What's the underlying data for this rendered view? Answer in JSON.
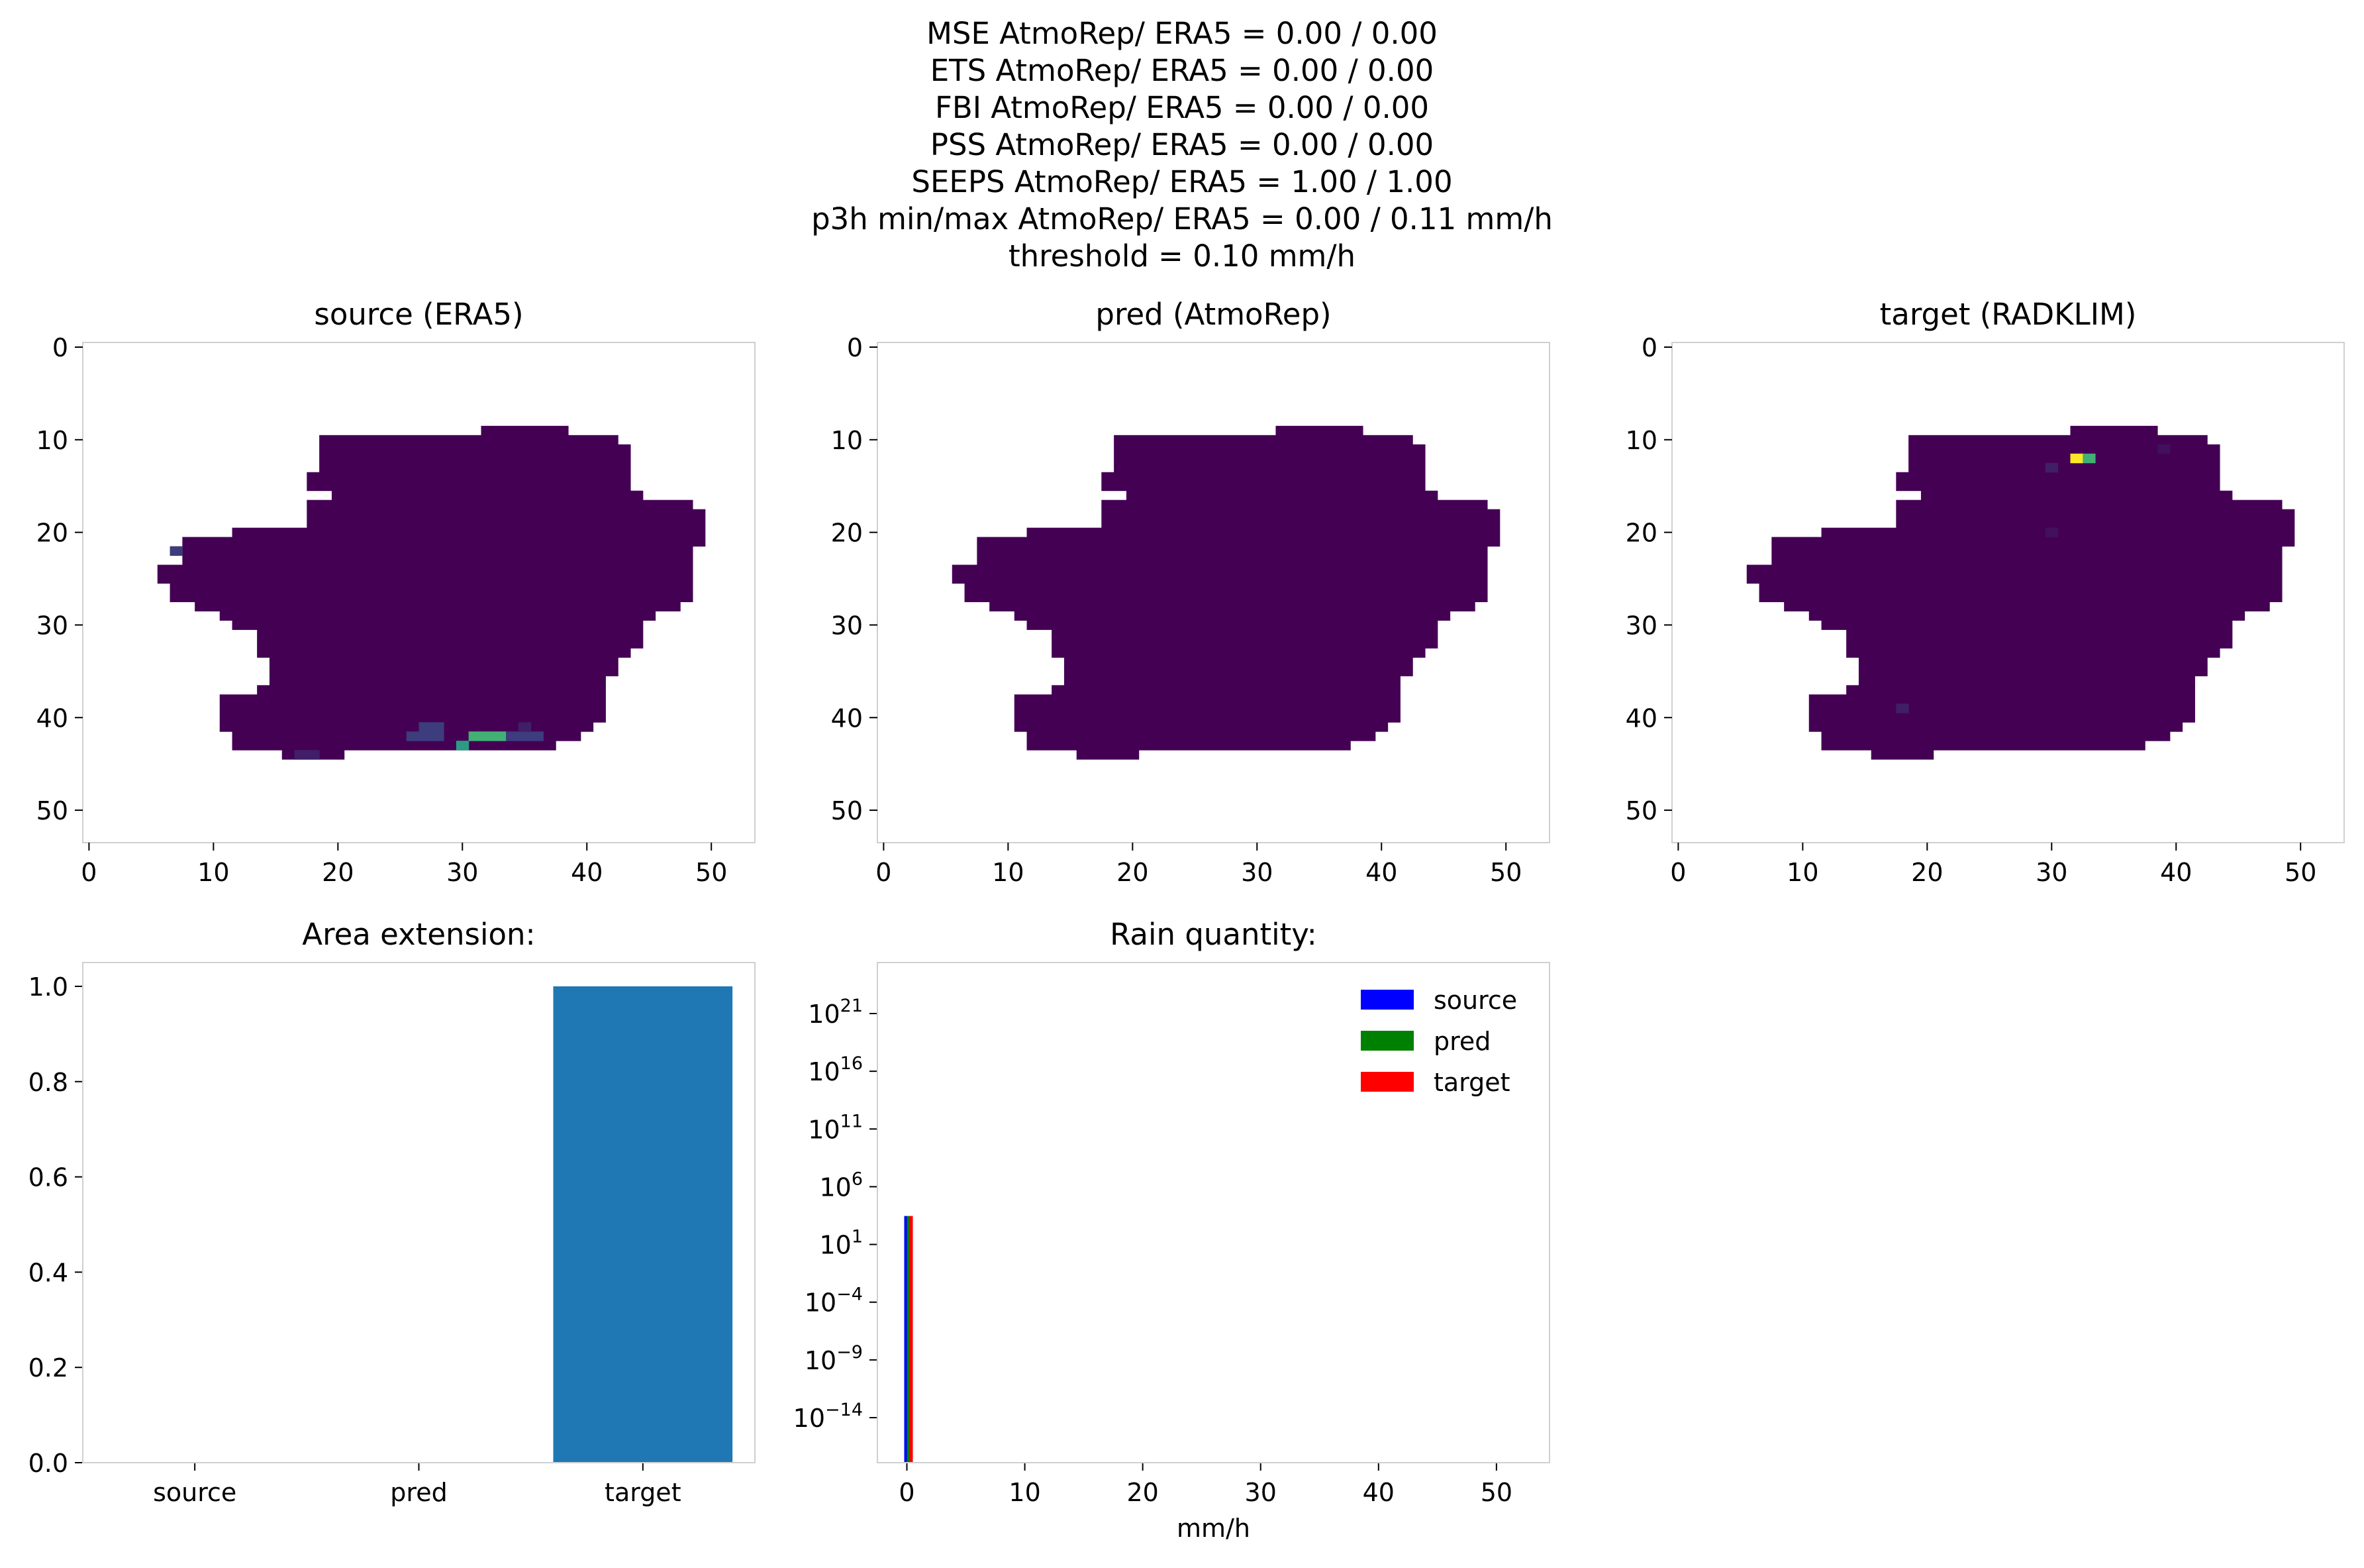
{
  "suptitle": [
    "MSE AtmoRep/ ERA5 = 0.00 / 0.00",
    "ETS AtmoRep/ ERA5 = 0.00 / 0.00",
    "FBI AtmoRep/ ERA5 = 0.00 / 0.00",
    "PSS AtmoRep/ ERA5 = 0.00 / 0.00",
    "SEEPS AtmoRep/ ERA5 = 1.00 / 1.00",
    "p3h min/max AtmoRep/ ERA5 = 0.00 / 0.11 mm/h",
    "threshold = 0.10 mm/h"
  ],
  "colors": {
    "background": "#440154",
    "mask_rows_hex": [
      "0000000000000000000000000000000000000000000000000000000",
      "0000000000000000000000000000000000000000000000000000000",
      "0000000000000000000000000000000000000000000000000000000",
      "0000000000000000000000000000000000000000000000000000000",
      "0000000000000000000000000000000000000000000000000000000",
      "0000000000000000000000000000000000000000000000000000000",
      "0000000000000000000000000000000000000000000000000000000",
      "0000000000000000000000000000000000000000000000000000000",
      "0000000000000000000000000000000000000000000000000000000",
      "0000000000000000000000000000000000000000000000000000000",
      "0000000000000000000000000000000000000000000000000000000",
      "0000000000000000000000000000000000000000000000000000000",
      "0000000000000000000000000000000000000000000000000000000",
      "0000000000000000000000000000000000000000000000000000000",
      "0000000000000000000000000000000000000000000000000000000",
      "0000000000000000000000000000000000000000000000000000000",
      "0000000000000000000000000000000000000000000000000000000",
      "0000000000000000000000000000000000000000000000000000000",
      "0000000000000000000000000000000000000000000000000000000",
      "0000000000000000000000000000000000000000000000000000000",
      "0000000000000000000000000000000000000000000000000000000",
      "0000000000000000000000000000000000000000000000000000000",
      "0000000000000000000000000000000000000000000000000000000",
      "0000000000000000000000000000000000000000000000000000000",
      "0000000000000000000000000000000000000000000000000000000",
      "0000000000000000000000000000000000000000000000000000000",
      "0000000000000000000000000000000000000000000000000000000",
      "0000000000000000000000000000000000000000000000000000000",
      "0000000000000000000000000000000000000000000000000000000",
      "0000000000000000000000000000000000000000000000000000000",
      "0000000000000000000000000000000000000000000000000000000",
      "0000000000000000000000000000000000000000000000000000000",
      "0000000000000000000000000000000000000000000000000000000",
      "0000000000000000000000000000000000000000000000000000000",
      "0000000000000000000000000000000000000000000000000000000",
      "0000000000000000000000000000000000000000000000000000000",
      "0000000000000000000000000000000000000000000000000000000",
      "0000000000000000000000000000000000000000000000000000000",
      "0000000000000000000000000000000000000000000000000000000",
      "0000000000000000000000000000000000000000000000000000000",
      "0000000000000000000000000000000000000000000000000000000",
      "0000000000000000000000000000000000000000000000000000000",
      "0000000000000000000000000000000000000000000000000000000",
      "0000000000000000000000000000000000000000000000000000000",
      "0000000000000000000000000000000000000000000000000000000",
      "0000000000000000000000000000000000000000000000000000000",
      "0000000000000000000000000000000000000000000000000000000",
      "0000000000000000000000000000000000000000000000000000000",
      "0000000000000000000000000000000000000000000000000000000",
      "0000000000000000000000000000000000000000000000000000000",
      "0000000000000000000000000000000000000000000000000000000",
      "0000000000000000000000000000000000000000000000000000000",
      "0000000000000000000000000000000000000000000000000000000",
      "0000000000000000000000000000000000000000000000000000000"
    ],
    "hist_source": "#0000ff",
    "hist_pred": "#008000",
    "hist_target": "#ff0000",
    "bar": "#1f77b4",
    "spine": "#d0d0d0"
  },
  "heatmap": {
    "ticks": [
      "0",
      "10",
      "20",
      "30",
      "40",
      "50"
    ],
    "panels": [
      {
        "title": "source (ERA5)"
      },
      {
        "title": "pred (AtmoRep)"
      },
      {
        "title": "target (RADKLIM)"
      }
    ]
  },
  "chart_data": [
    {
      "type": "heatmap",
      "title": "source (ERA5)",
      "xlim": [
        -0.5,
        53.5
      ],
      "ylim": [
        53.5,
        -0.5
      ],
      "colormap": "viridis",
      "vmin": 0,
      "vmax": 0.11,
      "mask_rows": [
        [
          9,
          32,
          38
        ],
        [
          10,
          19,
          42
        ],
        [
          11,
          19,
          43
        ],
        [
          12,
          19,
          43
        ],
        [
          13,
          19,
          43
        ],
        [
          14,
          18,
          43
        ],
        [
          15,
          18,
          43
        ],
        [
          16,
          20,
          44
        ],
        [
          17,
          18,
          48
        ],
        [
          18,
          18,
          49
        ],
        [
          19,
          18,
          49
        ],
        [
          20,
          12,
          49
        ],
        [
          21,
          8,
          49
        ],
        [
          22,
          8,
          48
        ],
        [
          23,
          8,
          48
        ],
        [
          24,
          6,
          48
        ],
        [
          25,
          6,
          48
        ],
        [
          26,
          7,
          48
        ],
        [
          27,
          7,
          48
        ],
        [
          28,
          9,
          47
        ],
        [
          29,
          11,
          45
        ],
        [
          30,
          12,
          44
        ],
        [
          31,
          14,
          44
        ],
        [
          32,
          14,
          44
        ],
        [
          33,
          14,
          43
        ],
        [
          34,
          15,
          42
        ],
        [
          35,
          15,
          42
        ],
        [
          36,
          15,
          41
        ],
        [
          37,
          14,
          41
        ],
        [
          38,
          11,
          41
        ],
        [
          39,
          11,
          41
        ],
        [
          40,
          11,
          41
        ],
        [
          41,
          11,
          40
        ],
        [
          42,
          12,
          39
        ],
        [
          43,
          12,
          37
        ],
        [
          44,
          16,
          20
        ]
      ],
      "hot_cells": [
        [
          22,
          7,
          0.02
        ],
        [
          41,
          27,
          0.02
        ],
        [
          41,
          28,
          0.02
        ],
        [
          42,
          26,
          0.02
        ],
        [
          42,
          27,
          0.02
        ],
        [
          42,
          28,
          0.02
        ],
        [
          42,
          31,
          0.07
        ],
        [
          42,
          32,
          0.07
        ],
        [
          42,
          33,
          0.07
        ],
        [
          42,
          34,
          0.02
        ],
        [
          42,
          35,
          0.02
        ],
        [
          42,
          36,
          0.02
        ],
        [
          43,
          30,
          0.06
        ],
        [
          41,
          35,
          0.01
        ],
        [
          44,
          17,
          0.01
        ],
        [
          44,
          18,
          0.01
        ]
      ]
    },
    {
      "type": "heatmap",
      "title": "pred (AtmoRep)",
      "xlim": [
        -0.5,
        53.5
      ],
      "ylim": [
        53.5,
        -0.5
      ],
      "colormap": "viridis",
      "vmin": 0,
      "vmax": 0.11,
      "mask": "same_as_source",
      "hot_cells": []
    },
    {
      "type": "heatmap",
      "title": "target (RADKLIM)",
      "xlim": [
        -0.5,
        53.5
      ],
      "ylim": [
        53.5,
        -0.5
      ],
      "colormap": "viridis",
      "vmin": 0,
      "vmax": 0.11,
      "mask": "same_as_source",
      "hot_cells": [
        [
          12,
          32,
          0.11
        ],
        [
          12,
          33,
          0.07
        ],
        [
          13,
          30,
          0.01
        ],
        [
          11,
          39,
          0.005
        ],
        [
          20,
          30,
          0.005
        ],
        [
          39,
          18,
          0.01
        ]
      ]
    },
    {
      "type": "bar",
      "title": "Area extension:",
      "categories": [
        "source",
        "pred",
        "target"
      ],
      "values": [
        0.0,
        0.0,
        1.0
      ],
      "ylim": [
        0,
        1.05
      ],
      "yticks": [
        "0.0",
        "0.2",
        "0.4",
        "0.6",
        "0.8",
        "1.0"
      ]
    },
    {
      "type": "bar",
      "title": "Rain quantity:",
      "xlabel": "mm/h",
      "xlim": [
        -2.5,
        54.5
      ],
      "ylog": true,
      "xticks": [
        "0",
        "10",
        "20",
        "30",
        "40",
        "50"
      ],
      "yticks": [
        {
          "base": "10",
          "exp": "21"
        },
        {
          "base": "10",
          "exp": "16"
        },
        {
          "base": "10",
          "exp": "11"
        },
        {
          "base": "10",
          "exp": "6"
        },
        {
          "base": "10",
          "exp": "1"
        },
        {
          "base": "10",
          "exp": "−4"
        },
        {
          "base": "10",
          "exp": "−9"
        },
        {
          "base": "10",
          "exp": "−14"
        }
      ],
      "series": [
        {
          "name": "source",
          "x": [
            0.0
          ],
          "values": [
            2916
          ]
        },
        {
          "name": "pred",
          "x": [
            0.0
          ],
          "values": [
            2916
          ]
        },
        {
          "name": "target",
          "x": [
            0.0
          ],
          "values": [
            2916
          ]
        }
      ],
      "legend": "top-right"
    }
  ]
}
